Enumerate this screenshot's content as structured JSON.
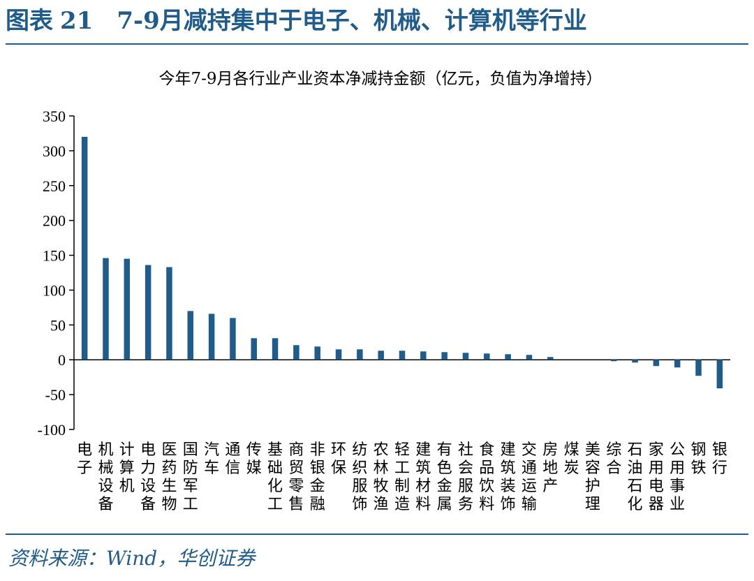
{
  "figure": {
    "label": "图表",
    "number": "21",
    "title": "7-9月减持集中于电子、机械、计算机等行业"
  },
  "source": "资料来源：Wind，华创证券",
  "chart_data": {
    "type": "bar",
    "title": "今年7-9月各行业产业资本净减持金额（亿元，负值为净增持）",
    "xlabel": "",
    "ylabel": "",
    "ylim": [
      -100,
      350
    ],
    "yticks": [
      350,
      300,
      250,
      200,
      150,
      100,
      50,
      0,
      -50,
      -100
    ],
    "grid": false,
    "bar_color": "#1f5c8a",
    "categories": [
      "电子",
      "机械设备",
      "计算机",
      "电力设备",
      "医药生物",
      "国防军工",
      "汽车",
      "通信",
      "传媒",
      "基础化工",
      "商贸零售",
      "非银金融",
      "环保",
      "纺织服饰",
      "农林牧渔",
      "轻工制造",
      "建筑材料",
      "有色金属",
      "社会服务",
      "食品饮料",
      "建筑装饰",
      "交通运输",
      "房地产",
      "煤炭",
      "美容护理",
      "综合",
      "石油石化",
      "家用电器",
      "公用事业",
      "钢铁",
      "银行"
    ],
    "label_lines": [
      [
        "电",
        "子"
      ],
      [
        "机",
        "械",
        "设",
        "备"
      ],
      [
        "计",
        "算",
        "机"
      ],
      [
        "电",
        "力",
        "设",
        "备"
      ],
      [
        "医",
        "药",
        "生",
        "物"
      ],
      [
        "国",
        "防",
        "军",
        "工"
      ],
      [
        "汽",
        "车"
      ],
      [
        "通",
        "信"
      ],
      [
        "传",
        "媒"
      ],
      [
        "基",
        "础",
        "化",
        "工"
      ],
      [
        "商",
        "贸",
        "零",
        "售"
      ],
      [
        "非",
        "银",
        "金",
        "融"
      ],
      [
        "环",
        "保"
      ],
      [
        "纺",
        "织",
        "服",
        "饰"
      ],
      [
        "农",
        "林",
        "牧",
        "渔"
      ],
      [
        "轻",
        "工",
        "制",
        "造"
      ],
      [
        "建",
        "筑",
        "材",
        "料"
      ],
      [
        "有",
        "色",
        "金",
        "属"
      ],
      [
        "社",
        "会",
        "服",
        "务"
      ],
      [
        "食",
        "品",
        "饮",
        "料"
      ],
      [
        "建",
        "筑",
        "装",
        "饰"
      ],
      [
        "交",
        "通",
        "运",
        "输"
      ],
      [
        "房",
        "地",
        "产"
      ],
      [
        "煤",
        "炭"
      ],
      [
        "美",
        "容",
        "护",
        "理"
      ],
      [
        "综",
        "合"
      ],
      [
        "石",
        "油",
        "石",
        "化"
      ],
      [
        "家",
        "用",
        "电",
        "器"
      ],
      [
        "公",
        "用",
        "事",
        "业"
      ],
      [
        "钢",
        "铁"
      ],
      [
        "银",
        "行"
      ]
    ],
    "values": [
      320,
      146,
      145,
      136,
      133,
      70,
      66,
      60,
      31,
      31,
      21,
      19,
      15,
      15,
      13,
      13,
      12,
      11,
      10,
      9,
      8,
      7,
      4,
      0,
      0,
      -2,
      -4,
      -9,
      -11,
      -23,
      -41
    ]
  }
}
